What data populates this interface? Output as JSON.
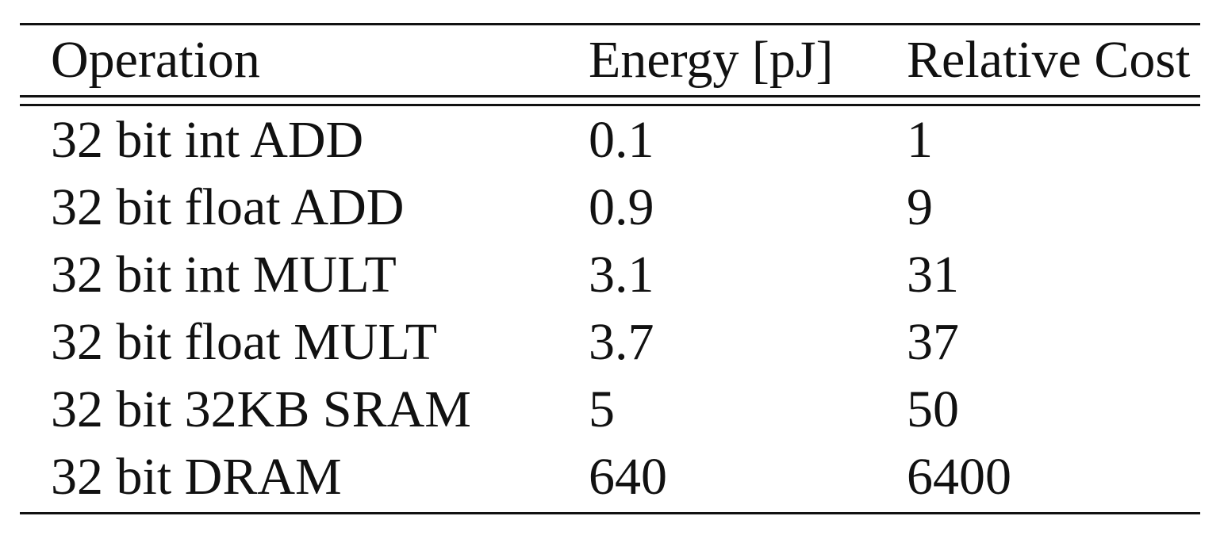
{
  "table": {
    "headers": [
      "Operation",
      "Energy [pJ]",
      "Relative Cost"
    ],
    "rows": [
      [
        "32 bit int ADD",
        "0.1",
        "1"
      ],
      [
        "32 bit float ADD",
        "0.9",
        "9"
      ],
      [
        "32 bit int MULT",
        "3.1",
        "31"
      ],
      [
        "32 bit float MULT",
        "3.7",
        "37"
      ],
      [
        "32 bit 32KB SRAM",
        "5",
        "50"
      ],
      [
        "32 bit DRAM",
        "640",
        "6400"
      ]
    ]
  }
}
